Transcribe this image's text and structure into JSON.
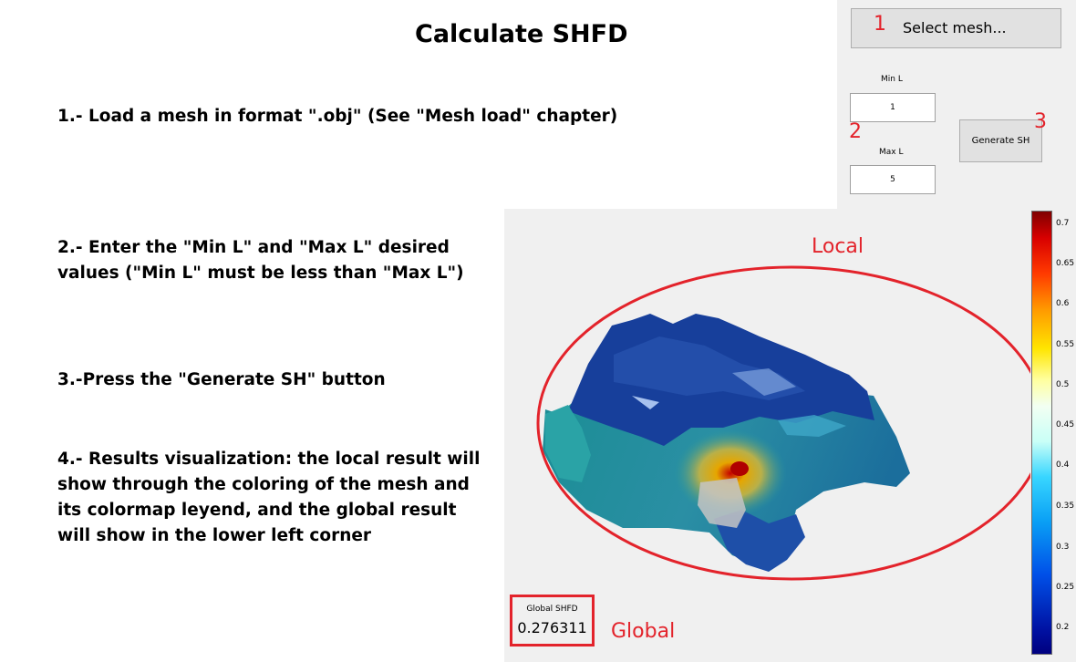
{
  "title": "Calculate SHFD",
  "steps": [
    "1.- Load a mesh in format \".obj\" (See \"Mesh load\" chapter)",
    "2.- Enter the \"Min L\" and \"Max L\" desired values (\"Min L\" must be less than \"Max L\")",
    "3.-Press the \"Generate SH\" button",
    "4.- Results visualization: the local result will show through the coloring of the mesh and its colormap leyend, and the global result will show in the lower left corner"
  ],
  "controls": {
    "select_mesh_label": "Select mesh...",
    "min_l_label": "Min L",
    "min_l_value": "1",
    "max_l_label": "Max L",
    "max_l_value": "5",
    "generate_label": "Generate SH"
  },
  "annotations": {
    "num1": "1",
    "num2": "2",
    "num3": "3",
    "local": "Local",
    "global": "Global",
    "color": "#e3232b"
  },
  "colorbar": {
    "ticks": [
      "0.7",
      "0.65",
      "0.6",
      "0.55",
      "0.5",
      "0.45",
      "0.4",
      "0.35",
      "0.3",
      "0.25",
      "0.2"
    ]
  },
  "global_result": {
    "label": "Global SHFD",
    "value": "0.276311"
  }
}
